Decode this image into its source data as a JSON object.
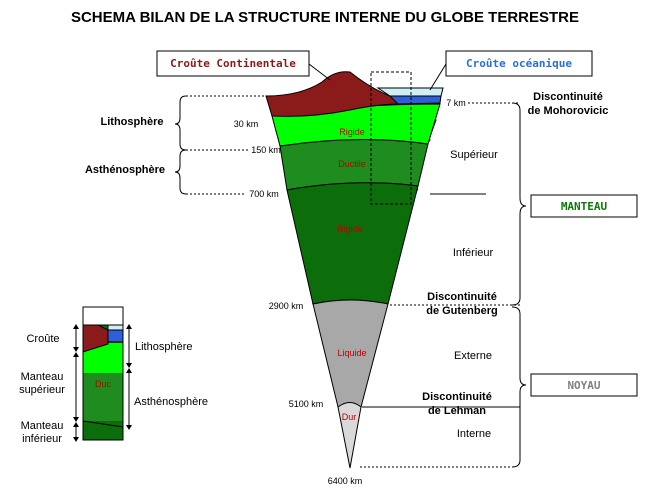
{
  "title": "SCHEMA BILAN DE LA STRUCTURE INTERNE DU GLOBE TERRESTRE",
  "boxes": {
    "continental_crust": "Croûte Continentale",
    "oceanic_crust": "Croûte océanique",
    "mantle": "MANTEAU",
    "core": "NOYAU"
  },
  "depths": {
    "d7": "7 km",
    "d30": "30 km",
    "d150": "150 km",
    "d700": "700 km",
    "d2900": "2900 km",
    "d5100": "5100 km",
    "d6400": "6400 km"
  },
  "envelopes": {
    "lithosphere": "Lithosphère",
    "asthenosphere": "Asthénosphère"
  },
  "states": {
    "rigid1": "Rigide",
    "ductile": "Ductile",
    "rigid2": "Rigide",
    "liquid": "Liquide",
    "hard": "Dur"
  },
  "zones": {
    "upper": "Supérieur",
    "lower": "Inférieur",
    "outer": "Externe",
    "inner": "Interne"
  },
  "discontinuities": {
    "moho_line1": "Discontinuité",
    "moho_line2": "de Mohorovicic",
    "gut_line1": "Discontinuité",
    "gut_line2": "de Gutenberg",
    "leh_line1": "Discontinuité",
    "leh_line2": "de Lehman"
  },
  "inset": {
    "crust": "Croûte",
    "upper_mantle_1": "Manteau",
    "upper_mantle_2": "supérieur",
    "lower_mantle_1": "Manteau",
    "lower_mantle_2": "inférieur",
    "lithosphere": "Lithosphère",
    "asthenosphere": "Asthénosphère",
    "state_label": "Duc"
  },
  "colors": {
    "continental_crust": "#8b1a1a",
    "oceanic_crust": "#2e5fd6",
    "ocean": "#cdeff5",
    "rigid_lithosphere": "#00ff00",
    "asthenosphere": "#1e8c1e",
    "lower_mantle": "#0b6e0b",
    "outer_core": "#a8a8a8",
    "inner_core": "#d9d9d9",
    "label_red": "#c00000",
    "core_box_text": "#808080",
    "mantle_box_text": "#0b7a0b",
    "oceanic_box_text": "#2a6fd6"
  }
}
